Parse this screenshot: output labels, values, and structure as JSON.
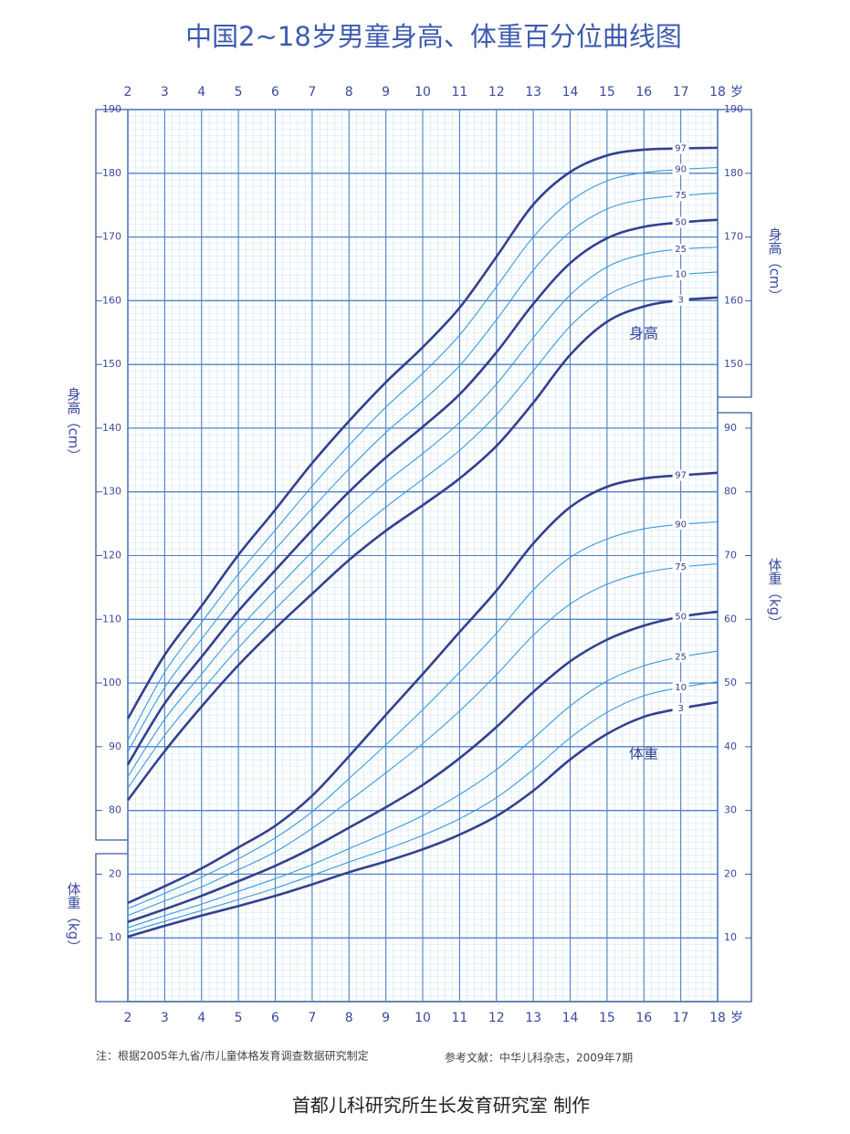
{
  "chart_data": {
    "type": "line",
    "title": "中国2~18岁男童身高、体重百分位曲线图",
    "x": [
      2,
      3,
      4,
      5,
      6,
      7,
      8,
      9,
      10,
      11,
      12,
      13,
      14,
      15,
      16,
      17,
      18
    ],
    "xlim": [
      2,
      18
    ],
    "xticks": [
      2,
      3,
      4,
      5,
      6,
      7,
      8,
      9,
      10,
      11,
      12,
      13,
      14,
      15,
      16,
      17,
      18
    ],
    "x_unit": "岁",
    "ylabel": "身高（cm）",
    "ylim": [
      50,
      190
    ],
    "yticks": [
      80,
      90,
      100,
      110,
      120,
      130,
      140,
      150,
      160,
      170,
      180,
      190
    ],
    "yticks_right": [
      150,
      160,
      170,
      180,
      190
    ],
    "y2label": "体重（kg）",
    "y2lim": [
      0,
      140
    ],
    "y2ticks": [
      10,
      20
    ],
    "y2ticks_right": [
      10,
      20,
      30,
      40,
      50,
      60,
      70,
      80,
      90
    ],
    "grid": true,
    "annotations": [
      "身高",
      "体重"
    ],
    "series": [
      {
        "name": "97",
        "color": "#34418f",
        "width": 2.6,
        "axis": "y",
        "values": [
          94.4,
          104.4,
          112.1,
          120.1,
          127.2,
          134.5,
          141.1,
          147.2,
          152.7,
          158.9,
          166.9,
          175.1,
          180.2,
          182.8,
          183.7,
          183.9,
          184.0
        ]
      },
      {
        "name": "90",
        "color": "#3a9ad9",
        "width": 1.1,
        "axis": "y",
        "values": [
          91.0,
          101.7,
          109.5,
          117.1,
          124.0,
          130.9,
          137.3,
          143.3,
          148.6,
          154.6,
          162.2,
          170.0,
          175.6,
          178.8,
          180.1,
          180.6,
          180.9
        ]
      },
      {
        "name": "75",
        "color": "#3a9ad9",
        "width": 1.1,
        "axis": "y",
        "values": [
          89.2,
          99.3,
          106.9,
          114.3,
          121.0,
          127.4,
          133.6,
          139.3,
          144.3,
          149.8,
          157.0,
          164.8,
          170.8,
          174.4,
          175.9,
          176.5,
          176.9
        ]
      },
      {
        "name": "50",
        "color": "#34418f",
        "width": 2.6,
        "axis": "y",
        "values": [
          87.2,
          96.8,
          104.1,
          111.3,
          117.7,
          124.0,
          130.0,
          135.4,
          140.2,
          145.3,
          151.9,
          159.5,
          165.9,
          169.8,
          171.6,
          172.3,
          172.7
        ]
      },
      {
        "name": "25",
        "color": "#3a9ad9",
        "width": 1.1,
        "axis": "y",
        "values": [
          85.3,
          94.3,
          101.4,
          108.4,
          114.6,
          120.6,
          126.4,
          131.5,
          136.0,
          140.9,
          146.9,
          154.2,
          160.9,
          165.3,
          167.3,
          168.1,
          168.4
        ]
      },
      {
        "name": "10",
        "color": "#3a9ad9",
        "width": 1.1,
        "axis": "y",
        "values": [
          83.5,
          91.8,
          98.8,
          105.5,
          111.6,
          117.3,
          122.8,
          127.6,
          132.0,
          136.5,
          142.1,
          149.0,
          156.0,
          160.8,
          163.2,
          164.1,
          164.5
        ]
      },
      {
        "name": "3",
        "color": "#34418f",
        "width": 2.6,
        "axis": "y",
        "values": [
          81.6,
          89.3,
          96.3,
          102.8,
          108.6,
          114.0,
          119.3,
          123.9,
          127.9,
          132.1,
          137.2,
          144.0,
          151.5,
          156.7,
          159.1,
          160.1,
          160.5
        ]
      },
      {
        "name": "97",
        "color": "#34418f",
        "width": 2.6,
        "axis": "y2",
        "values": [
          15.5,
          18.1,
          20.9,
          24.2,
          27.6,
          32.3,
          38.5,
          45.0,
          51.4,
          58.0,
          64.5,
          71.9,
          77.6,
          80.8,
          82.1,
          82.6,
          83.0
        ]
      },
      {
        "name": "90",
        "color": "#3a9ad9",
        "width": 1.1,
        "axis": "y2",
        "values": [
          14.6,
          17.0,
          19.5,
          22.4,
          25.7,
          29.8,
          35.0,
          40.3,
          45.8,
          51.7,
          57.8,
          64.6,
          69.7,
          72.6,
          74.2,
          74.9,
          75.3
        ]
      },
      {
        "name": "75",
        "color": "#3a9ad9",
        "width": 1.1,
        "axis": "y2",
        "values": [
          13.5,
          15.8,
          18.0,
          20.7,
          23.5,
          27.2,
          31.5,
          35.9,
          40.5,
          45.6,
          51.3,
          57.5,
          62.4,
          65.5,
          67.3,
          68.2,
          68.7
        ]
      },
      {
        "name": "50",
        "color": "#34418f",
        "width": 2.6,
        "axis": "y2",
        "values": [
          12.5,
          14.5,
          16.6,
          18.9,
          21.3,
          24.1,
          27.3,
          30.5,
          34.0,
          38.2,
          43.1,
          48.6,
          53.4,
          56.8,
          59.0,
          60.4,
          61.2
        ]
      },
      {
        "name": "25",
        "color": "#3a9ad9",
        "width": 1.1,
        "axis": "y2",
        "values": [
          11.6,
          13.5,
          15.3,
          17.3,
          19.3,
          21.5,
          24.0,
          26.5,
          29.2,
          32.5,
          36.4,
          41.3,
          46.4,
          50.3,
          52.7,
          54.1,
          55.0
        ]
      },
      {
        "name": "10",
        "color": "#3a9ad9",
        "width": 1.1,
        "axis": "y2",
        "values": [
          10.9,
          12.6,
          14.3,
          16.0,
          17.8,
          19.8,
          21.9,
          23.9,
          26.1,
          28.7,
          32.0,
          36.4,
          41.4,
          45.4,
          48.0,
          49.3,
          50.2
        ]
      },
      {
        "name": "3",
        "color": "#34418f",
        "width": 2.6,
        "axis": "y2",
        "values": [
          10.2,
          11.9,
          13.5,
          15.0,
          16.6,
          18.4,
          20.3,
          22.0,
          23.9,
          26.2,
          29.1,
          33.1,
          38.0,
          42.0,
          44.7,
          46.0,
          47.0
        ]
      }
    ],
    "note": "注：根据2005年九省/市儿童体格发育调查数据研究制定",
    "reference": "参考文献：中华儿科杂志，2009年7期",
    "footer": "首都儿科研究所生长发育研究室  制作"
  }
}
